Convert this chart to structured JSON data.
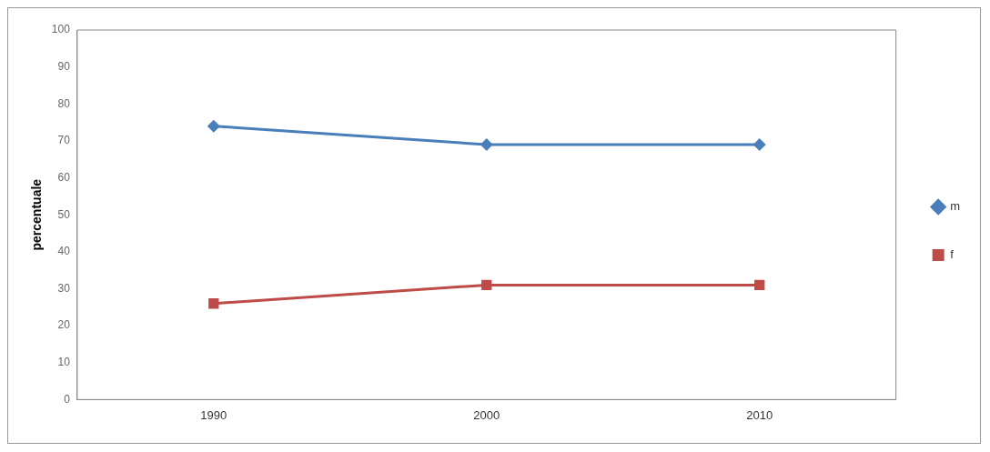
{
  "chart_data": {
    "type": "line",
    "ylabel": "percentuale",
    "categories": [
      "1990",
      "2000",
      "2010"
    ],
    "series": [
      {
        "name": "m",
        "color": "#4a7ebb",
        "values": [
          74,
          69,
          69
        ],
        "marker": "diamond"
      },
      {
        "name": "f",
        "color": "#be4b48",
        "values": [
          26,
          31,
          31
        ],
        "marker": "square"
      }
    ],
    "ylim": [
      0,
      100
    ],
    "yticks": [
      0,
      10,
      20,
      30,
      40,
      50,
      60,
      70,
      80,
      90,
      100
    ],
    "grid": false,
    "legend": "right",
    "line_style": "solid"
  }
}
